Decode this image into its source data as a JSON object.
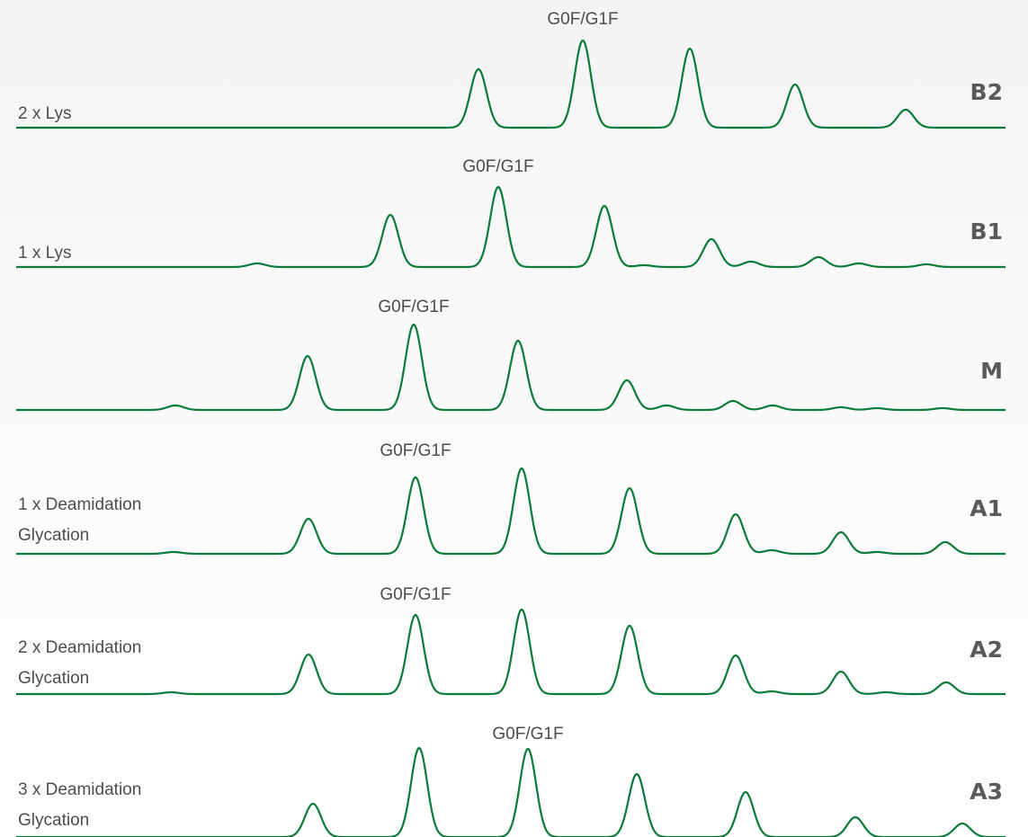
{
  "chart_data": {
    "type": "line",
    "style": {
      "line_color": "#0b7a3a",
      "text_color": "#4d4d4d",
      "id_color": "#5a5a5a"
    },
    "peak_width": 9,
    "panels": [
      {
        "id": "B2",
        "lines": [
          "2 x Lys"
        ],
        "annotation": "G0F/G1F",
        "annotated_peak": 1,
        "peaks": [
          [
            532,
            65
          ],
          [
            648,
            97
          ],
          [
            767,
            88
          ],
          [
            884,
            48
          ],
          [
            1007,
            20
          ]
        ]
      },
      {
        "id": "B1",
        "lines": [
          "1 x Lys"
        ],
        "annotation": "G0F/G1F",
        "annotated_peak": 2,
        "peaks": [
          [
            286,
            4
          ],
          [
            434,
            58
          ],
          [
            554,
            89
          ],
          [
            672,
            68
          ],
          [
            716,
            2
          ],
          [
            791,
            31
          ],
          [
            835,
            6
          ],
          [
            910,
            11
          ],
          [
            955,
            4
          ],
          [
            1030,
            3
          ]
        ]
      },
      {
        "id": "M",
        "lines": [],
        "annotation": "G0F/G1F",
        "annotated_peak": 2,
        "peaks": [
          [
            195,
            5
          ],
          [
            342,
            60
          ],
          [
            460,
            95
          ],
          [
            576,
            77
          ],
          [
            697,
            33
          ],
          [
            741,
            5
          ],
          [
            815,
            10
          ],
          [
            859,
            5
          ],
          [
            935,
            3
          ],
          [
            975,
            2
          ],
          [
            1048,
            2
          ]
        ]
      },
      {
        "id": "A1",
        "lines": [
          "1 x Deamidation",
          "Glycation"
        ],
        "annotation": "G0F/G1F",
        "annotated_peak": 2,
        "peaks": [
          [
            193,
            2
          ],
          [
            343,
            39
          ],
          [
            462,
            85
          ],
          [
            580,
            95
          ],
          [
            700,
            73
          ],
          [
            818,
            44
          ],
          [
            858,
            4
          ],
          [
            935,
            24
          ],
          [
            975,
            2
          ],
          [
            1051,
            13
          ]
        ]
      },
      {
        "id": "A2",
        "lines": [
          "2 x Deamidation",
          "Glycation"
        ],
        "annotation": "G0F/G1F",
        "annotated_peak": 2,
        "peaks": [
          [
            190,
            2
          ],
          [
            343,
            44
          ],
          [
            462,
            88
          ],
          [
            580,
            94
          ],
          [
            700,
            76
          ],
          [
            818,
            43
          ],
          [
            858,
            3
          ],
          [
            935,
            25
          ],
          [
            985,
            2
          ],
          [
            1052,
            13
          ]
        ]
      },
      {
        "id": "A3",
        "lines": [
          "3 x Deamidation",
          "Glycation"
        ],
        "annotation": "G0F/G1F",
        "annotated_peak": 2,
        "peaks": [
          [
            348,
            37
          ],
          [
            466,
            99
          ],
          [
            587,
            98
          ],
          [
            708,
            70
          ],
          [
            829,
            50
          ],
          [
            951,
            22
          ],
          [
            1070,
            15
          ]
        ]
      }
    ]
  }
}
